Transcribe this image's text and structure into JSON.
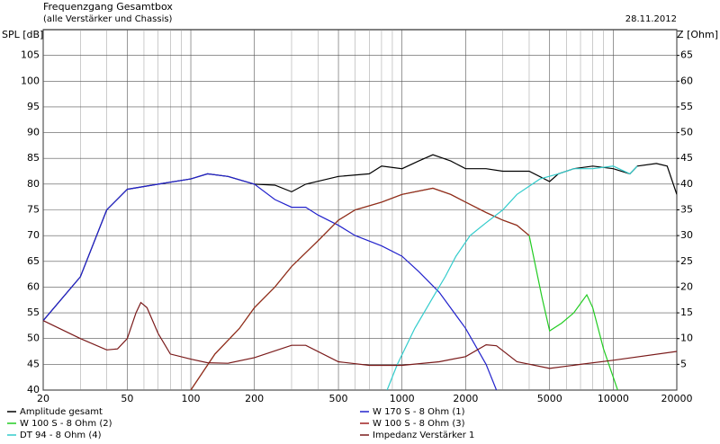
{
  "chart_data": {
    "type": "line",
    "title": "Frequenzgang Gesamtbox",
    "subtitle": "(alle Verstärker und Chassis)",
    "date": "28.11.2012",
    "ylabel": "SPL [dB]",
    "y2label": "Z [Ohm]",
    "xscale": "log",
    "xlim": [
      20,
      20000
    ],
    "xticks": [
      20,
      50,
      100,
      200,
      500,
      1000,
      2000,
      5000,
      10000,
      20000
    ],
    "xminorticks": [
      30,
      40,
      60,
      70,
      80,
      90,
      300,
      400,
      600,
      700,
      800,
      900,
      3000,
      4000,
      6000,
      7000,
      8000,
      9000
    ],
    "ylim": [
      40,
      110
    ],
    "yticks": [
      40,
      45,
      50,
      55,
      60,
      65,
      70,
      75,
      80,
      85,
      90,
      95,
      100,
      105
    ],
    "y2lim": [
      0,
      70
    ],
    "y2ticks": [
      5,
      10,
      15,
      20,
      25,
      30,
      35,
      40,
      45,
      50,
      55,
      60,
      65
    ],
    "grid": true,
    "series": [
      {
        "name": "Amplitude gesamt",
        "color": "#000000",
        "x": [
          20,
          30,
          40,
          50,
          70,
          100,
          120,
          150,
          200,
          250,
          300,
          350,
          500,
          700,
          800,
          1000,
          1200,
          1400,
          1700,
          2000,
          2500,
          3000,
          4000,
          5000,
          5500,
          6500,
          8000,
          10000,
          12000,
          13000,
          16000,
          18000,
          20000
        ],
        "values": [
          53.5,
          62,
          75,
          79,
          80,
          81,
          82,
          81.5,
          80,
          79.8,
          78.5,
          80,
          81.5,
          82,
          83.5,
          83,
          84.5,
          85.7,
          84.5,
          83,
          83,
          82.5,
          82.5,
          80.5,
          82,
          83,
          83.5,
          83,
          82,
          83.5,
          84,
          83.5,
          78
        ]
      },
      {
        "name": "W 170 S - 8 Ohm (1)",
        "color": "#2222cc",
        "x": [
          20,
          30,
          40,
          50,
          70,
          100,
          120,
          150,
          200,
          250,
          300,
          350,
          400,
          500,
          600,
          800,
          1000,
          1200,
          1500,
          2000,
          2500,
          2800
        ],
        "values": [
          53.5,
          62,
          75,
          79,
          80,
          81,
          82,
          81.5,
          80,
          77,
          75.5,
          75.5,
          74,
          72,
          70,
          68,
          66,
          63,
          59,
          52,
          45,
          40
        ]
      },
      {
        "name": "W 100 S - 8 Ohm (2)",
        "color": "#22cc22",
        "x": [
          100,
          130,
          170,
          200,
          250,
          300,
          400,
          500,
          600,
          800,
          1000,
          1400,
          1700,
          2000,
          2500,
          3000,
          3500,
          4000,
          4600,
          5000,
          5700,
          6500,
          7500,
          8000,
          9000,
          10500
        ],
        "values": [
          40,
          47,
          52,
          56,
          60,
          64,
          69,
          73,
          75,
          76.5,
          78,
          79.2,
          78,
          76.5,
          74.5,
          73,
          72,
          70,
          58,
          51.5,
          53,
          55,
          58.5,
          56,
          48,
          40
        ]
      },
      {
        "name": "W 100 S - 8 Ohm (3)",
        "color": "#a02020",
        "x": [
          100,
          130,
          170,
          200,
          250,
          300,
          400,
          500,
          600,
          800,
          1000,
          1400,
          1700,
          2000,
          2500,
          3000,
          3500,
          4000
        ],
        "values": [
          40,
          47,
          52,
          56,
          60,
          64,
          69,
          73,
          75,
          76.5,
          78,
          79.2,
          78,
          76.5,
          74.5,
          73,
          72,
          70
        ]
      },
      {
        "name": "DT 94 - 8 Ohm (4)",
        "color": "#33cccc",
        "x": [
          850,
          950,
          1150,
          1400,
          1600,
          1800,
          2100,
          2500,
          3000,
          3500,
          4500,
          5500,
          6500,
          8000,
          10000,
          12000,
          13000
        ],
        "values": [
          40,
          45,
          52,
          58,
          62,
          66,
          70,
          72.5,
          75,
          78,
          81,
          82,
          83,
          83,
          83.5,
          82,
          83.5
        ]
      },
      {
        "name": "Impedanz Verstärker 1",
        "color": "#7a1a1a",
        "axis": "y2",
        "x": [
          20,
          30,
          40,
          45,
          50,
          55,
          58,
          62,
          70,
          80,
          100,
          120,
          150,
          200,
          300,
          350,
          500,
          700,
          1000,
          1500,
          2000,
          2500,
          2800,
          3500,
          5000,
          7000,
          10000,
          20000
        ],
        "values": [
          13.5,
          10,
          7.8,
          8,
          10,
          15,
          17,
          16,
          11,
          7,
          6,
          5.3,
          5.2,
          6.3,
          8.7,
          8.7,
          5.5,
          4.8,
          4.8,
          5.5,
          6.5,
          8.8,
          8.6,
          5.5,
          4.2,
          5,
          5.8,
          7.5
        ]
      }
    ]
  }
}
